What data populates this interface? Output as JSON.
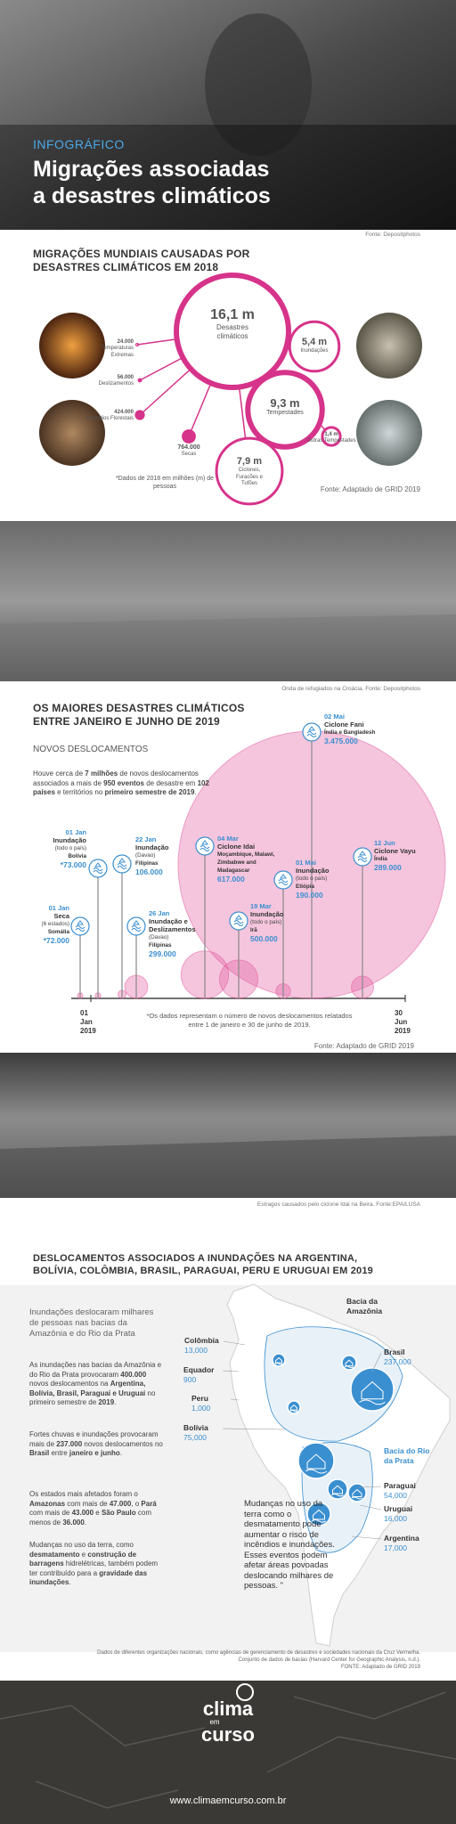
{
  "header": {
    "kicker": "INFOGRÁFICO",
    "title_lines": [
      "Migrações associadas",
      "a desastres climáticos"
    ],
    "photo_credit": "Fonte: Depositphotos"
  },
  "section1": {
    "title_lines": [
      "MIGRAÇÕES MUNDIAIS CAUSADAS POR",
      "DESASTRES CLIMÁTICOS EM  2018"
    ],
    "bubbles": [
      {
        "label": "16,1 m",
        "name": "Desastres climáticos",
        "value": 16.1
      },
      {
        "label": "5,4 m",
        "name": "Inundações",
        "value": 5.4
      },
      {
        "label": "9,3 m",
        "name": "Tempestades",
        "value": 9.3
      },
      {
        "label": "1,4 m",
        "name": "Outras Tempestades",
        "value": 1.4
      },
      {
        "label": "7,9 m",
        "name": "Ciclones, Furacões e Tufões",
        "value": 7.9
      },
      {
        "label": "764.000",
        "name": "Secas",
        "value": 0.764
      },
      {
        "label": "424.000",
        "name": "Incêndios Florestais",
        "value": 0.424
      },
      {
        "label": "56.000",
        "name": "Deslizamentos",
        "value": 0.056
      },
      {
        "label": "24.000",
        "name": "Temperaturas Extremas",
        "value": 0.024
      }
    ],
    "note": "*Dados de 2018 em milhões (m) de pessoas",
    "source": "Fonte: Adaptado de GRID 2019"
  },
  "photo1_caption": "Onda de refugiados na Croácia.  Fonte: Depositphotos",
  "section2": {
    "title_lines": [
      "OS MAIORES DESASTRES CLIMÁTICOS",
      "ENTRE JANEIRO E JUNHO DE 2019"
    ],
    "subtitle": "NOVOS DESLOCAMENTOS",
    "intro_runs": [
      "Houve cerca de ",
      "7 milhões",
      " de novos deslocamentos associados a mais de ",
      "950 eventos",
      " de desastre em ",
      "102 países",
      " e territórios no ",
      "primeiro semestre de 2019",
      "."
    ],
    "events": [
      {
        "date": "01 Jan",
        "title": "Inundação",
        "detail": "(todo o país)",
        "place": "Bolívia",
        "value": 73000,
        "value_label": "*73.000"
      },
      {
        "date": "01 Jan",
        "title": "Seca",
        "detail": "(6 estados)",
        "place": "Somália",
        "value": 72000,
        "value_label": "*72.000"
      },
      {
        "date": "22 Jan",
        "title": "Inundação",
        "detail": "(Davao)",
        "place": "Filipinas",
        "value": 106000,
        "value_label": "106.000"
      },
      {
        "date": "26 Jan",
        "title": "Inundação e Deslizamentos",
        "detail": "(Davao)",
        "place": "Filipinas",
        "value": 299000,
        "value_label": "299.000"
      },
      {
        "date": "04 Mar",
        "title": "Ciclone Idai",
        "place": "Moçambique, Malawi, Zimbabwe and Madagascar",
        "value": 617000,
        "value_label": "617.000"
      },
      {
        "date": "19 Mar",
        "title": "Inundação",
        "detail": "(todo o país)",
        "place": "Irã",
        "value": 500000,
        "value_label": "500.000"
      },
      {
        "date": "01 Mai",
        "title": "Inundação",
        "detail": "(todo o país)",
        "place": "Etiópia",
        "value": 190000,
        "value_label": "190.000"
      },
      {
        "date": "02 Mai",
        "title": "Ciclone Fani",
        "place": "Índia e Bangladesh",
        "value": 3475000,
        "value_label": "3.475.000"
      },
      {
        "date": "12 Jun",
        "title": "Ciclone Vayu",
        "place": "Índia",
        "value": 289000,
        "value_label": "289.000"
      }
    ],
    "axis_start": "01 Jan 2019",
    "axis_end": "30 Jun 2019",
    "note": "*Os dados representam o número de novos deslocamentos relatados entre 1 de janeiro e 30 de junho de 2019.",
    "source": "Fonte: Adaptado de GRID 2019"
  },
  "photo2_caption": "Estragos causados pelo ciclone Idai na Beira.  Fonte:EPA/LUSA",
  "section3": {
    "title_lines": [
      "DESLOCAMENTOS ASSOCIADOS A INUNDAÇÕES NA ARGENTINA,",
      "BOLÍVIA, COLÔMBIA, BRASIL, PARAGUAI, PERU E URUGUAI EM 2019"
    ],
    "heading": "Inundações deslocaram milhares de pessoas nas bacias da Amazônia e do Rio da Prata",
    "paragraphs": [
      [
        "As inundações nas bacias da Amazônia e do Rio da Prata provocaram ",
        "400.000",
        " novos deslocamentos na ",
        "Argentina, Bolívia, Brasil, Paraguai e Uruguai",
        " no primeiro semestre de ",
        "2019",
        "."
      ],
      [
        "Fortes chuvas e inundações provocaram mais de ",
        "237.000",
        " novos deslocamentos no ",
        "Brasil",
        " entre ",
        "janeiro e junho",
        "."
      ],
      [
        "Os estados mais afetados foram o ",
        "Amazonas",
        " com mais de ",
        "47.000",
        ", o ",
        "Pará",
        " com mais de ",
        "43.000",
        " e ",
        "São Paulo",
        " com menos de ",
        "36.000",
        "."
      ],
      [
        "Mudanças no uso da terra, como ",
        "desmatamento",
        " e ",
        "construção de barragens",
        " hidrelétricas, também podem ter  contribuído  para a ",
        "gravidade das inundações",
        "."
      ]
    ],
    "quote": "Mudanças no uso da terra como o desmatamento pode aumentar o risco de incêndios e inundações. Esses eventos podem afetar áreas povoadas deslocando milhares de pessoas. \"",
    "basins": [
      "Bacia da Amazônia",
      "Bacia do Rio da Prata"
    ],
    "countries": [
      {
        "name": "Colômbia",
        "value": "13,000"
      },
      {
        "name": "Equador",
        "value": "900"
      },
      {
        "name": "Peru",
        "value": "1,000"
      },
      {
        "name": "Bolívia",
        "value": "75,000"
      },
      {
        "name": "Brasil",
        "value": "237,000"
      },
      {
        "name": "Paraguai",
        "value": "54,000"
      },
      {
        "name": "Uruguai",
        "value": "16,000"
      },
      {
        "name": "Argentina",
        "value": "17,000"
      }
    ],
    "source_lines": [
      "Dados de diferentes organizações nacionais, como agências de gerenciamento de desastres e sociedades nacionais da Cruz Vermelha.",
      "Conjunto de dados de bacias (Harvard Center for Geographic Analysis, n.d.).",
      "FONTE: Adaptado de GRID 2019"
    ]
  },
  "footer": {
    "logo_top": "clima",
    "logo_mid": "em",
    "logo_bottom": "curso",
    "url": "www.climaemcurso.com.br"
  }
}
